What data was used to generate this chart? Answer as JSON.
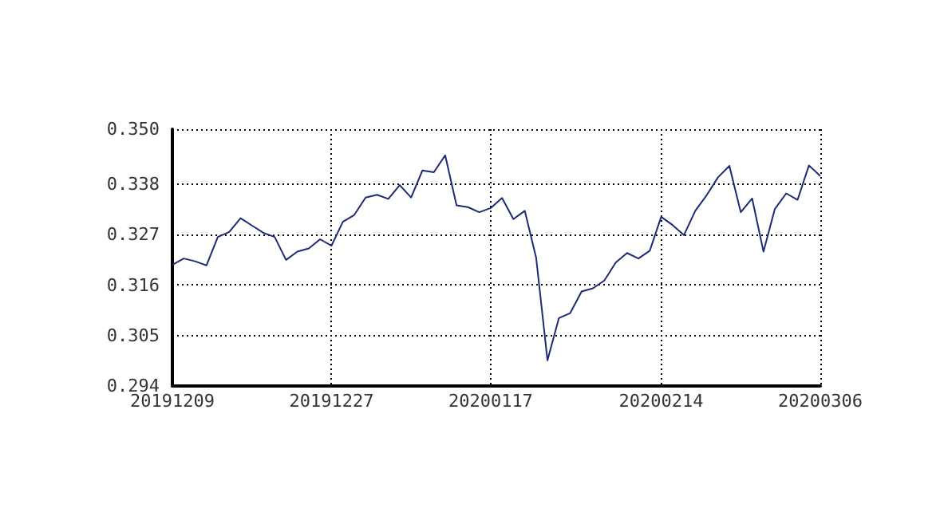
{
  "chart_data": {
    "type": "line",
    "categories": [
      "20191209",
      null,
      null,
      null,
      null,
      null,
      null,
      null,
      null,
      null,
      null,
      null,
      null,
      null,
      "20191227",
      null,
      null,
      null,
      null,
      null,
      null,
      null,
      null,
      null,
      null,
      null,
      null,
      null,
      "20200117",
      null,
      null,
      null,
      null,
      null,
      null,
      null,
      null,
      null,
      null,
      null,
      null,
      null,
      null,
      "20200214",
      null,
      null,
      null,
      null,
      null,
      null,
      null,
      null,
      null,
      null,
      null,
      null,
      null,
      "20200306"
    ],
    "series": [
      {
        "color": "#1c2a78",
        "values": [
          0.3204,
          0.3218,
          0.3212,
          0.3203,
          0.3265,
          0.3276,
          0.3306,
          0.329,
          0.3274,
          0.3265,
          0.3215,
          0.3233,
          0.324,
          0.326,
          0.3246,
          0.3298,
          0.3313,
          0.3351,
          0.3357,
          0.3348,
          0.3378,
          0.3351,
          0.341,
          0.3406,
          0.3443,
          0.3334,
          0.333,
          0.3319,
          0.3328,
          0.335,
          0.3304,
          0.3322,
          0.322,
          0.2996,
          0.3088,
          0.3099,
          0.3146,
          0.3153,
          0.317,
          0.3209,
          0.323,
          0.3218,
          0.3235,
          0.3309,
          0.3291,
          0.3269,
          0.3322,
          0.3356,
          0.3395,
          0.342,
          0.3319,
          0.3349,
          0.3233,
          0.3326,
          0.336,
          0.3346,
          0.3421,
          0.3398
        ]
      }
    ],
    "ylim": [
      0.294,
      0.35
    ],
    "yticks": [
      0.294,
      0.305,
      0.316,
      0.327,
      0.338,
      {
        "value": 0.35,
        "label": "0.350"
      }
    ],
    "grid": true,
    "marker": "none"
  }
}
